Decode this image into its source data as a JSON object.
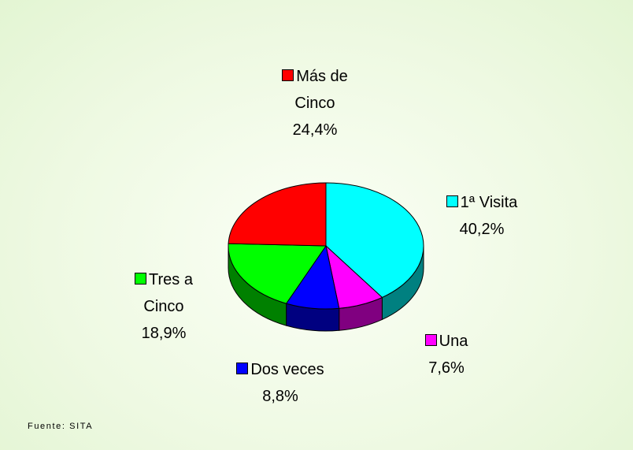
{
  "chart_data": {
    "type": "pie",
    "categories": [
      "1ª Visita",
      "Una",
      "Dos veces",
      "Tres a Cinco",
      "Más de Cinco"
    ],
    "values": [
      40.2,
      7.6,
      8.8,
      18.9,
      24.4
    ],
    "value_labels": [
      "40,2%",
      "7,6%",
      "8,8%",
      "18,9%",
      "24,4%"
    ],
    "colors": [
      "#00ffff",
      "#ff00ff",
      "#0000ff",
      "#00ff00",
      "#ff0000"
    ],
    "source": "Fuente: SITA"
  }
}
